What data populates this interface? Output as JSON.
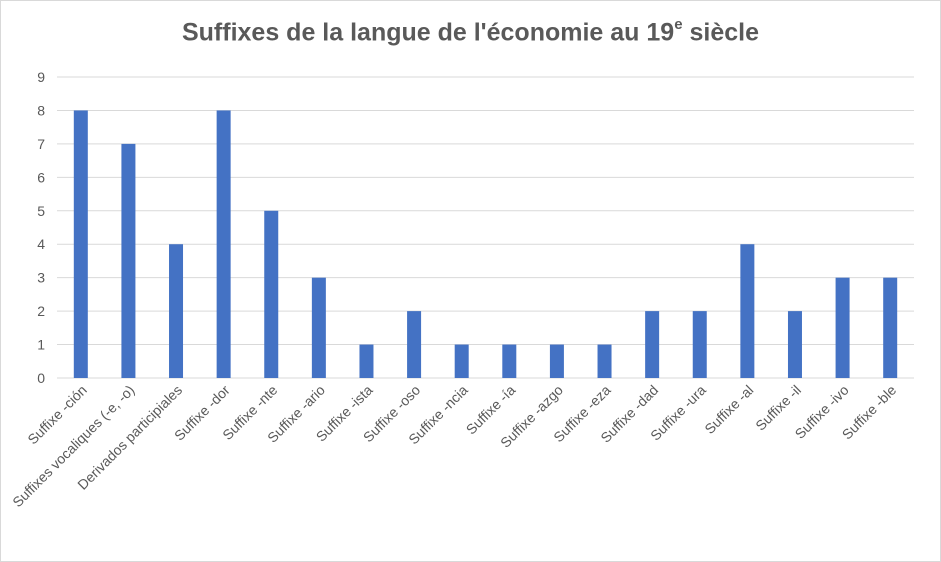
{
  "chart_data": {
    "type": "bar",
    "title": {
      "main": "Suffixes de la langue de l'économie au 19",
      "sup": "e",
      "tail": " siècle"
    },
    "categories": [
      "Suffixe -ción",
      "Suffixes vocaliques (-e, -o)",
      "Derivados participiales",
      "Suffixe -dor",
      "Suffixe -nte",
      "Suffixe -ario",
      "Suffixe -ista",
      "Suffixe -oso",
      "Suffixe -ncia",
      "Suffixe -ía",
      "Suffixe -azgo",
      "Suffixe -eza",
      "Suffixe -dad",
      "Suffixe -ura",
      "Suffixe -al",
      "Suffixe -il",
      "Suffixe -ivo",
      "Suffixe -ble"
    ],
    "values": [
      8,
      7,
      4,
      8,
      5,
      3,
      1,
      2,
      1,
      1,
      1,
      1,
      2,
      2,
      4,
      2,
      3,
      3
    ],
    "ylim": [
      0,
      9
    ],
    "yticks": [
      "0",
      "1",
      "2",
      "3",
      "4",
      "5",
      "6",
      "7",
      "8",
      "9"
    ],
    "grid": true,
    "bar_color": "#4472c4",
    "grid_color": "#d9d9d9"
  }
}
